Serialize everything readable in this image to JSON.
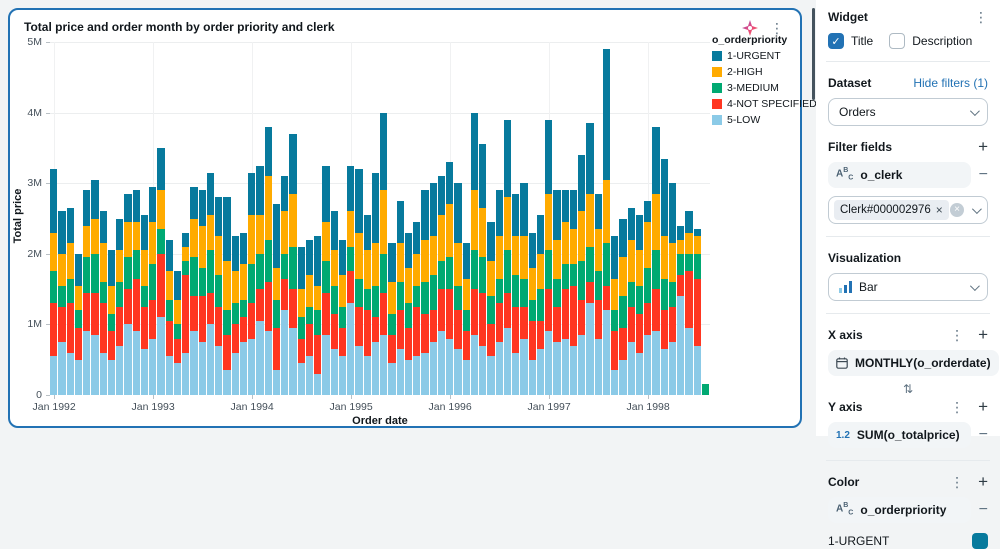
{
  "icons": {
    "kebab": "⋮",
    "plus": "+",
    "minus": "−",
    "check": "✓",
    "close": "×",
    "swap": "⇅",
    "clear": "×",
    "string_a": "A",
    "string_b": "B",
    "string_c": "C"
  },
  "chart_card": {
    "title": "Total price and order month by order priority and clerk"
  },
  "widget_panel": {
    "title": "Widget",
    "title_checkbox": {
      "label": "Title",
      "checked": true
    },
    "description_checkbox": {
      "label": "Description",
      "checked": false
    },
    "dataset": {
      "label": "Dataset",
      "hide_filters_link": "Hide filters (1)",
      "selected": "Orders"
    },
    "filter_fields": {
      "label": "Filter fields",
      "field": "o_clerk",
      "filter_tag": "Clerk#000002976"
    },
    "visualization": {
      "label": "Visualization",
      "selected": "Bar"
    },
    "x_axis": {
      "label": "X axis",
      "field": "MONTHLY(o_orderdate)"
    },
    "y_axis": {
      "label": "Y axis",
      "field": "SUM(o_totalprice)",
      "icon_text": "1.2"
    },
    "color": {
      "label": "Color",
      "field": "o_orderpriority",
      "first_category": "1-URGENT",
      "first_category_color": "#077A9D"
    }
  },
  "chart_data": {
    "type": "bar",
    "stacked": true,
    "title": "Total price and order month by order priority and clerk",
    "xlabel": "Order date",
    "ylabel": "Total price",
    "ylim_millions": [
      0,
      5
    ],
    "y_ticks": [
      "0",
      "1M",
      "2M",
      "3M",
      "4M",
      "5M"
    ],
    "x_interval": "month",
    "x_start": "1992-01",
    "x_end": "1998-08",
    "x_count": 80,
    "x_tick_labels": [
      "Jan 1992",
      "Jan 1993",
      "Jan 1994",
      "Jan 1995",
      "Jan 1996",
      "Jan 1997",
      "Jan 1998"
    ],
    "x_tick_month_indices": [
      0,
      12,
      24,
      36,
      48,
      60,
      72
    ],
    "legend_title": "o_orderpriority",
    "legend_position": "top-right",
    "values_unit": "millions",
    "stack_order_bottom_to_top": [
      "5-LOW",
      "4-NOT SPECIFIED",
      "3-MEDIUM",
      "2-HIGH",
      "1-URGENT"
    ],
    "series": [
      {
        "name": "1-URGENT",
        "color": "#077A9D",
        "values": [
          0.9,
          0.6,
          0.5,
          0.45,
          0.5,
          0.55,
          0.45,
          0.5,
          0.45,
          0.4,
          0.45,
          0.5,
          0.5,
          0.6,
          0.45,
          0.4,
          0.2,
          0.45,
          0.5,
          0.6,
          0.55,
          0.9,
          0.5,
          0.45,
          0.6,
          0.7,
          0.7,
          0.9,
          0.5,
          0.85,
          0.6,
          0.5,
          0.7,
          0.8,
          0.55,
          0.5,
          0.65,
          0.9,
          0.5,
          1.0,
          1.1,
          0.55,
          0.6,
          0.5,
          0.45,
          0.7,
          0.75,
          0.55,
          0.6,
          0.85,
          0.5,
          1.1,
          0.9,
          0.55,
          0.65,
          1.1,
          0.6,
          0.75,
          0.5,
          0.55,
          1.05,
          0.7,
          0.45,
          0.55,
          0.8,
          1.0,
          0.5,
          1.85,
          0.6,
          0.55,
          0.45,
          0.5,
          0.3,
          0.95,
          1.1,
          0.85,
          0.2,
          0.3,
          0.1,
          0.0
        ]
      },
      {
        "name": "2-HIGH",
        "color": "#FFAB00",
        "values": [
          0.55,
          0.45,
          0.5,
          0.35,
          0.45,
          0.5,
          0.55,
          0.4,
          0.45,
          0.5,
          0.4,
          0.5,
          0.6,
          0.55,
          0.4,
          0.35,
          0.2,
          0.55,
          0.6,
          0.5,
          0.55,
          0.7,
          0.45,
          0.5,
          0.7,
          0.55,
          0.9,
          0.45,
          0.6,
          0.75,
          0.4,
          0.45,
          0.35,
          0.55,
          0.5,
          0.45,
          0.5,
          0.65,
          0.55,
          0.6,
          0.9,
          0.45,
          0.55,
          0.5,
          0.45,
          0.6,
          0.55,
          0.65,
          0.75,
          0.6,
          0.45,
          0.85,
          0.7,
          0.5,
          0.6,
          0.75,
          0.55,
          0.6,
          0.45,
          0.5,
          0.8,
          0.55,
          0.6,
          0.5,
          0.7,
          0.75,
          0.6,
          0.9,
          0.45,
          0.55,
          0.6,
          0.5,
          0.65,
          0.8,
          0.6,
          0.55,
          0.2,
          0.3,
          0.25,
          0.0
        ]
      },
      {
        "name": "3-MEDIUM",
        "color": "#00A972",
        "values": [
          0.45,
          0.3,
          0.35,
          0.25,
          0.5,
          0.55,
          0.3,
          0.25,
          0.35,
          0.45,
          0.4,
          0.3,
          0.5,
          0.35,
          0.3,
          0.2,
          0.2,
          0.55,
          0.4,
          0.6,
          0.45,
          0.35,
          0.3,
          0.25,
          0.55,
          0.5,
          0.6,
          0.4,
          0.35,
          0.6,
          0.3,
          0.25,
          0.35,
          0.45,
          0.4,
          0.3,
          0.35,
          0.4,
          0.3,
          0.45,
          0.55,
          0.3,
          0.4,
          0.35,
          0.3,
          0.45,
          0.5,
          0.4,
          0.45,
          0.35,
          0.3,
          0.55,
          0.5,
          0.4,
          0.35,
          0.6,
          0.45,
          0.4,
          0.3,
          0.45,
          0.55,
          0.4,
          0.35,
          0.3,
          0.55,
          0.5,
          0.4,
          0.6,
          0.3,
          0.45,
          0.35,
          0.4,
          0.5,
          0.55,
          0.45,
          0.35,
          0.3,
          0.25,
          0.35,
          0.15
        ]
      },
      {
        "name": "4-NOT SPECIFIED",
        "color": "#FF3621",
        "values": [
          0.75,
          0.5,
          0.7,
          0.45,
          0.55,
          0.6,
          0.7,
          0.4,
          0.55,
          0.5,
          0.75,
          0.6,
          0.55,
          0.9,
          0.5,
          0.35,
          1.1,
          0.5,
          0.65,
          0.45,
          0.55,
          0.5,
          0.4,
          0.35,
          0.5,
          0.45,
          0.7,
          0.6,
          0.45,
          0.55,
          0.35,
          0.45,
          0.55,
          0.6,
          0.5,
          0.4,
          0.45,
          0.55,
          0.65,
          0.35,
          0.6,
          0.4,
          0.55,
          0.45,
          0.7,
          0.55,
          0.45,
          0.6,
          0.7,
          0.55,
          0.4,
          0.65,
          0.75,
          0.45,
          0.55,
          0.5,
          0.65,
          0.45,
          0.55,
          0.4,
          0.6,
          0.5,
          0.7,
          0.85,
          0.5,
          0.3,
          0.55,
          0.35,
          0.55,
          0.45,
          0.5,
          0.55,
          0.45,
          0.6,
          0.55,
          0.5,
          0.3,
          0.8,
          0.95,
          0.0
        ]
      },
      {
        "name": "5-LOW",
        "color": "#8BCAE7",
        "values": [
          0.55,
          0.75,
          0.6,
          0.5,
          0.9,
          0.85,
          0.6,
          0.5,
          0.7,
          1.0,
          0.9,
          0.65,
          0.8,
          1.1,
          0.55,
          0.45,
          0.6,
          0.9,
          0.75,
          1.0,
          0.7,
          0.35,
          0.6,
          0.75,
          0.8,
          1.05,
          0.9,
          0.35,
          1.2,
          0.95,
          0.45,
          0.55,
          0.3,
          0.85,
          0.65,
          0.55,
          1.3,
          0.7,
          0.55,
          0.75,
          0.85,
          0.45,
          0.65,
          0.5,
          0.55,
          0.6,
          0.75,
          0.9,
          0.8,
          0.65,
          0.5,
          0.85,
          0.7,
          0.55,
          0.75,
          0.95,
          0.6,
          0.8,
          0.5,
          0.65,
          0.9,
          0.75,
          0.8,
          0.7,
          0.85,
          1.3,
          0.8,
          1.2,
          0.35,
          0.5,
          0.75,
          0.6,
          0.85,
          0.9,
          0.65,
          0.75,
          1.4,
          0.95,
          0.7,
          0.0
        ]
      }
    ]
  }
}
